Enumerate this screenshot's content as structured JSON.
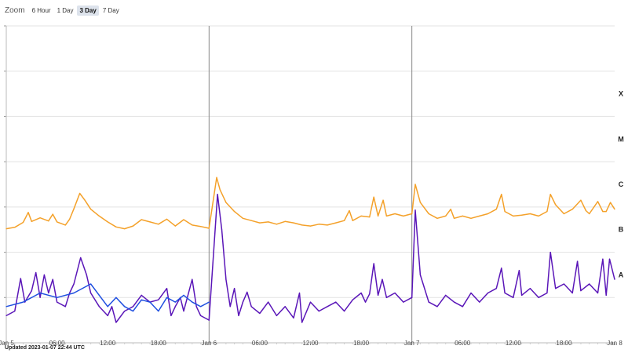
{
  "zoom": {
    "label": "Zoom",
    "options": [
      "6 Hour",
      "1 Day",
      "3 Day",
      "7 Day"
    ],
    "selected": "3 Day"
  },
  "updated_text": "Updated 2023-01-07 22:44 UTC",
  "colors": {
    "series_long": "#f4a12a",
    "series_long_tail": "#d9531e",
    "series_short": "#5a16b8",
    "series_short_alt": "#1f4fe0",
    "grid": "#e3e3e3",
    "day_marker": "#888888"
  },
  "chart_data": {
    "type": "line",
    "title": "",
    "xlabel": "",
    "ylabel": "",
    "x_range_hours": [
      0,
      72
    ],
    "x_ticks": [
      {
        "hour": 0,
        "label": "Jan 5"
      },
      {
        "hour": 6,
        "label": "06:00"
      },
      {
        "hour": 12,
        "label": "12:00"
      },
      {
        "hour": 18,
        "label": "18:00"
      },
      {
        "hour": 24,
        "label": "Jan 6"
      },
      {
        "hour": 30,
        "label": "06:00"
      },
      {
        "hour": 36,
        "label": "12:00"
      },
      {
        "hour": 42,
        "label": "18:00"
      },
      {
        "hour": 48,
        "label": "Jan 7"
      },
      {
        "hour": 54,
        "label": "06:00"
      },
      {
        "hour": 60,
        "label": "12:00"
      },
      {
        "hour": 66,
        "label": "18:00"
      },
      {
        "hour": 72,
        "label": "Jan 8"
      }
    ],
    "day_markers_hours": [
      24,
      48
    ],
    "y_scale": "log",
    "y_decades": [
      -9,
      -2
    ],
    "flare_classes": [
      {
        "label": "A",
        "decade": -8
      },
      {
        "label": "B",
        "decade": -7
      },
      {
        "label": "C",
        "decade": -6
      },
      {
        "label": "M",
        "decade": -5
      },
      {
        "label": "X",
        "decade": -4
      }
    ],
    "series": [
      {
        "key": "long",
        "color": "#f4a12a",
        "points": [
          [
            0,
            -6.48
          ],
          [
            1,
            -6.45
          ],
          [
            2,
            -6.34
          ],
          [
            2.6,
            -6.12
          ],
          [
            3,
            -6.32
          ],
          [
            4,
            -6.24
          ],
          [
            5,
            -6.31
          ],
          [
            5.5,
            -6.16
          ],
          [
            6,
            -6.33
          ],
          [
            7,
            -6.4
          ],
          [
            7.5,
            -6.27
          ],
          [
            8,
            -6.04
          ],
          [
            8.7,
            -5.7
          ],
          [
            9.3,
            -5.85
          ],
          [
            10,
            -6.05
          ],
          [
            11,
            -6.2
          ],
          [
            12,
            -6.33
          ],
          [
            13,
            -6.44
          ],
          [
            14,
            -6.48
          ],
          [
            15,
            -6.42
          ],
          [
            16,
            -6.28
          ],
          [
            17,
            -6.33
          ],
          [
            18,
            -6.38
          ],
          [
            19,
            -6.27
          ],
          [
            20,
            -6.42
          ],
          [
            21,
            -6.28
          ],
          [
            22,
            -6.4
          ],
          [
            23,
            -6.43
          ],
          [
            24,
            -6.47
          ],
          [
            24.9,
            -5.35
          ],
          [
            25.3,
            -5.62
          ],
          [
            26,
            -5.9
          ],
          [
            27,
            -6.1
          ],
          [
            28,
            -6.25
          ],
          [
            29,
            -6.3
          ],
          [
            30,
            -6.35
          ],
          [
            31,
            -6.33
          ],
          [
            32,
            -6.38
          ],
          [
            33,
            -6.32
          ],
          [
            34,
            -6.35
          ],
          [
            35,
            -6.4
          ],
          [
            36,
            -6.42
          ],
          [
            37,
            -6.38
          ],
          [
            38,
            -6.4
          ],
          [
            39,
            -6.35
          ],
          [
            40,
            -6.3
          ],
          [
            40.6,
            -6.08
          ],
          [
            41,
            -6.3
          ],
          [
            42,
            -6.2
          ],
          [
            43,
            -6.22
          ],
          [
            43.5,
            -5.78
          ],
          [
            44,
            -6.2
          ],
          [
            44.6,
            -5.85
          ],
          [
            45,
            -6.2
          ],
          [
            46,
            -6.15
          ],
          [
            47,
            -6.2
          ],
          [
            48,
            -6.15
          ],
          [
            48.4,
            -5.5
          ],
          [
            49,
            -5.9
          ],
          [
            50,
            -6.15
          ],
          [
            51,
            -6.25
          ],
          [
            52,
            -6.2
          ],
          [
            52.6,
            -6.05
          ],
          [
            53,
            -6.25
          ],
          [
            54,
            -6.2
          ],
          [
            55,
            -6.25
          ],
          [
            56,
            -6.2
          ],
          [
            57,
            -6.15
          ],
          [
            58,
            -6.05
          ],
          [
            58.6,
            -5.72
          ],
          [
            59,
            -6.1
          ],
          [
            60,
            -6.2
          ],
          [
            61,
            -6.18
          ],
          [
            62,
            -6.15
          ],
          [
            63,
            -6.2
          ],
          [
            64,
            -6.1
          ],
          [
            64.4,
            -5.72
          ],
          [
            65,
            -5.95
          ],
          [
            66,
            -6.15
          ],
          [
            67,
            -6.05
          ],
          [
            68,
            -5.85
          ],
          [
            68.6,
            -6.08
          ],
          [
            69,
            -6.15
          ],
          [
            70,
            -5.88
          ],
          [
            70.6,
            -6.1
          ],
          [
            71,
            -6.1
          ],
          [
            71.5,
            -5.9
          ],
          [
            72,
            -6.05
          ]
        ]
      },
      {
        "key": "short",
        "color": "#5a16b8",
        "points": [
          [
            0,
            -8.4
          ],
          [
            1,
            -8.3
          ],
          [
            1.7,
            -7.58
          ],
          [
            2.2,
            -8.1
          ],
          [
            3,
            -7.85
          ],
          [
            3.5,
            -7.45
          ],
          [
            4,
            -8.0
          ],
          [
            4.5,
            -7.5
          ],
          [
            5,
            -7.9
          ],
          [
            5.5,
            -7.6
          ],
          [
            6,
            -8.1
          ],
          [
            7,
            -8.2
          ],
          [
            7.5,
            -7.9
          ],
          [
            8,
            -7.7
          ],
          [
            8.8,
            -7.12
          ],
          [
            9.5,
            -7.5
          ],
          [
            10,
            -7.9
          ],
          [
            11,
            -8.2
          ],
          [
            12,
            -8.4
          ],
          [
            12.5,
            -8.2
          ],
          [
            13,
            -8.55
          ],
          [
            14,
            -8.3
          ],
          [
            15,
            -8.2
          ],
          [
            16,
            -7.95
          ],
          [
            17,
            -8.1
          ],
          [
            18,
            -8.05
          ],
          [
            19,
            -7.8
          ],
          [
            19.5,
            -8.4
          ],
          [
            20,
            -8.2
          ],
          [
            20.6,
            -8.0
          ],
          [
            21,
            -8.3
          ],
          [
            22,
            -7.6
          ],
          [
            22.5,
            -8.2
          ],
          [
            23,
            -8.4
          ],
          [
            24,
            -8.5
          ],
          [
            25,
            -5.72
          ],
          [
            25.5,
            -6.5
          ],
          [
            26,
            -7.6
          ],
          [
            26.5,
            -8.2
          ],
          [
            27,
            -7.8
          ],
          [
            27.5,
            -8.4
          ],
          [
            28,
            -8.1
          ],
          [
            28.5,
            -7.88
          ],
          [
            29,
            -8.2
          ],
          [
            30,
            -8.35
          ],
          [
            31,
            -8.1
          ],
          [
            32,
            -8.4
          ],
          [
            33,
            -8.2
          ],
          [
            34,
            -8.45
          ],
          [
            34.7,
            -7.9
          ],
          [
            35,
            -8.55
          ],
          [
            36,
            -8.1
          ],
          [
            37,
            -8.3
          ],
          [
            38,
            -8.2
          ],
          [
            39,
            -8.1
          ],
          [
            40,
            -8.3
          ],
          [
            41,
            -8.05
          ],
          [
            42,
            -7.9
          ],
          [
            42.5,
            -8.1
          ],
          [
            43,
            -7.92
          ],
          [
            43.5,
            -7.25
          ],
          [
            44,
            -7.95
          ],
          [
            44.5,
            -7.6
          ],
          [
            45,
            -8.0
          ],
          [
            46,
            -7.9
          ],
          [
            47,
            -8.1
          ],
          [
            48,
            -8.0
          ],
          [
            48.4,
            -6.07
          ],
          [
            49,
            -7.5
          ],
          [
            50,
            -8.1
          ],
          [
            51,
            -8.2
          ],
          [
            52,
            -7.95
          ],
          [
            53,
            -8.1
          ],
          [
            54,
            -8.2
          ],
          [
            55,
            -7.9
          ],
          [
            56,
            -8.1
          ],
          [
            57,
            -7.9
          ],
          [
            58,
            -7.8
          ],
          [
            58.6,
            -7.35
          ],
          [
            59,
            -7.9
          ],
          [
            60,
            -8.0
          ],
          [
            60.7,
            -7.4
          ],
          [
            61,
            -7.95
          ],
          [
            62,
            -7.8
          ],
          [
            63,
            -8.0
          ],
          [
            64,
            -7.9
          ],
          [
            64.4,
            -7.0
          ],
          [
            65,
            -7.8
          ],
          [
            66,
            -7.7
          ],
          [
            67,
            -7.9
          ],
          [
            67.6,
            -7.2
          ],
          [
            68,
            -7.85
          ],
          [
            69,
            -7.7
          ],
          [
            70,
            -7.9
          ],
          [
            70.6,
            -7.15
          ],
          [
            71,
            -7.95
          ],
          [
            71.4,
            -7.15
          ],
          [
            72,
            -7.6
          ]
        ]
      },
      {
        "key": "short_alt",
        "color": "#1f4fe0",
        "points": [
          [
            0,
            -8.2
          ],
          [
            2,
            -8.1
          ],
          [
            4,
            -7.9
          ],
          [
            6,
            -8.0
          ],
          [
            8,
            -7.9
          ],
          [
            10,
            -7.7
          ],
          [
            11,
            -7.95
          ],
          [
            12,
            -8.2
          ],
          [
            13,
            -8.0
          ],
          [
            14,
            -8.2
          ],
          [
            15,
            -8.3
          ],
          [
            16,
            -8.05
          ],
          [
            17,
            -8.1
          ],
          [
            18,
            -8.3
          ],
          [
            19,
            -8.0
          ],
          [
            20,
            -8.1
          ],
          [
            21,
            -7.95
          ],
          [
            22,
            -8.1
          ],
          [
            23,
            -8.2
          ],
          [
            24,
            -8.1
          ]
        ]
      }
    ]
  }
}
